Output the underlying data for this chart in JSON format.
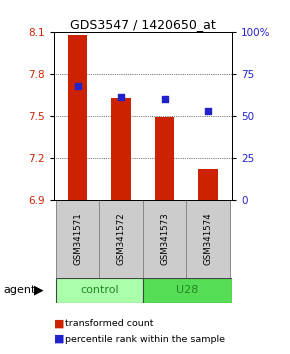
{
  "title": "GDS3547 / 1420650_at",
  "samples": [
    "GSM341571",
    "GSM341572",
    "GSM341573",
    "GSM341574"
  ],
  "transformed_counts": [
    8.08,
    7.63,
    7.49,
    7.12
  ],
  "percentile_ranks": [
    68,
    61,
    60,
    53
  ],
  "bar_bottom": 6.9,
  "ylim_left": [
    6.9,
    8.1
  ],
  "ylim_right": [
    0,
    100
  ],
  "yticks_left": [
    6.9,
    7.2,
    7.5,
    7.8,
    8.1
  ],
  "yticks_right": [
    0,
    25,
    50,
    75,
    100
  ],
  "ytick_labels_left": [
    "6.9",
    "7.2",
    "7.5",
    "7.8",
    "8.1"
  ],
  "ytick_labels_right": [
    "0",
    "25",
    "50",
    "75",
    "100%"
  ],
  "bar_color": "#cc2200",
  "dot_color": "#2222cc",
  "group_colors": {
    "control": "#aaffaa",
    "U28": "#55dd55"
  },
  "group_label_color": "#228822",
  "sample_box_color": "#cccccc",
  "agent_label": "agent",
  "legend_items": [
    "transformed count",
    "percentile rank within the sample"
  ],
  "groups_info": [
    {
      "label": "control",
      "start": 0,
      "end": 1
    },
    {
      "label": "U28",
      "start": 2,
      "end": 3
    }
  ]
}
